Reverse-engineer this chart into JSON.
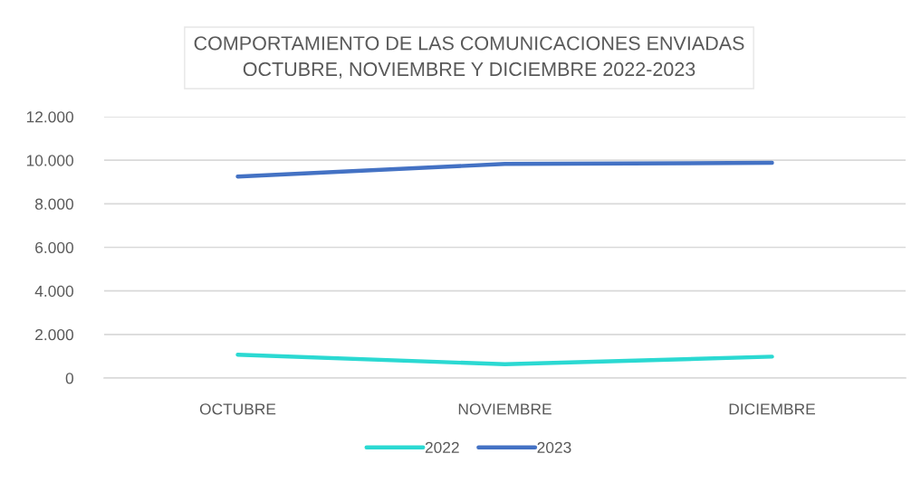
{
  "chart_data": {
    "type": "line",
    "title": "COMPORTAMIENTO DE LAS COMUNICACIONES ENVIADAS\nOCTUBRE, NOVIEMBRE Y DICIEMBRE 2022-2023",
    "categories": [
      "OCTUBRE",
      "NOVIEMBRE",
      "DICIEMBRE"
    ],
    "series": [
      {
        "name": "2022",
        "color": "#2bd9d2",
        "values": [
          1070,
          630,
          980
        ]
      },
      {
        "name": "2023",
        "color": "#4472c4",
        "values": [
          9250,
          9830,
          9880
        ]
      }
    ],
    "ylim": [
      0,
      12000
    ],
    "yticks": [
      0,
      {
        "value": 2000,
        "label": "2.000"
      },
      {
        "value": 4000,
        "label": "4.000"
      },
      {
        "value": 6000,
        "label": "6.000"
      },
      {
        "value": 8000,
        "label": "8.000"
      },
      {
        "value": 10000,
        "label": "10.000"
      },
      {
        "value": 12000,
        "label": "12.000"
      }
    ],
    "grid": "y",
    "legend": "bottom",
    "marker": "none",
    "line_style": "solid"
  }
}
